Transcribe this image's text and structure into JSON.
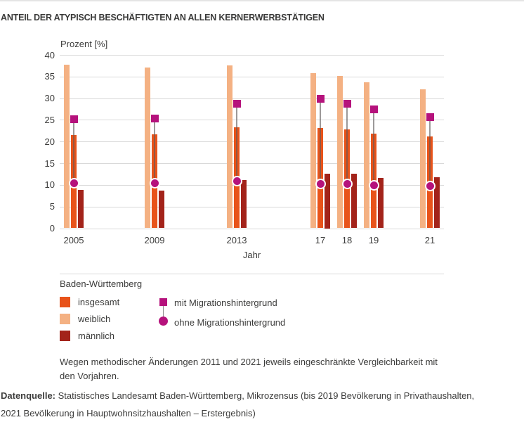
{
  "title": "ANTEIL DER ATYPISCH BESCHÄFTIGTEN AN ALLEN KERNERWERBSTÄTIGEN",
  "chart_data": {
    "type": "bar",
    "title": "Anteil der atypisch Beschäftigten an allen Kernerwerbstätigen",
    "ylabel": "Prozent [%]",
    "xlabel": "Jahr",
    "ylim": [
      0,
      40
    ],
    "yticks": [
      0,
      5,
      10,
      15,
      20,
      25,
      30,
      35,
      40
    ],
    "grid": true,
    "legend_position": "bottom",
    "categories": [
      "2005",
      "2009",
      "2013",
      "17",
      "18",
      "19",
      "21"
    ],
    "series": [
      {
        "name": "weiblich",
        "render": "bar",
        "color": "#f4b183",
        "values": [
          37.8,
          37.0,
          37.6,
          35.8,
          35.1,
          33.6,
          32.1
        ]
      },
      {
        "name": "insgesamt",
        "render": "bar",
        "color": "#e8531a",
        "values": [
          21.5,
          21.6,
          23.3,
          23.1,
          22.8,
          21.8,
          21.1
        ]
      },
      {
        "name": "männlich",
        "render": "bar",
        "color": "#a3231a",
        "values": [
          8.8,
          8.7,
          11.1,
          12.5,
          12.6,
          11.6,
          11.8
        ]
      },
      {
        "name": "mit Migrationshintergrund",
        "render": "square-marker",
        "color": "#b5127c",
        "values": [
          25.2,
          25.3,
          28.7,
          29.8,
          28.7,
          27.5,
          25.7
        ]
      },
      {
        "name": "ohne Migrationshintergrund",
        "render": "circle-marker",
        "color": "#b5127c",
        "values": [
          10.4,
          10.4,
          10.8,
          10.3,
          10.3,
          9.9,
          9.8
        ]
      }
    ]
  },
  "legend": {
    "region_label": "Baden-Württemberg",
    "items": [
      {
        "label": "insgesamt",
        "color": "#e8531a"
      },
      {
        "label": "weiblich",
        "color": "#f4b183"
      },
      {
        "label": "männlich",
        "color": "#a3231a"
      },
      {
        "label": "mit Migrationshintergrund",
        "color": "#b5127c"
      },
      {
        "label": "ohne Migrationshintergrund",
        "color": "#b5127c"
      }
    ]
  },
  "footnote": "Wegen methodischer Änderungen 2011 und 2021 jeweils eingeschränkte Vergleichbarkeit mit den Vorjahren.",
  "source": {
    "prefix": "Datenquelle:",
    "text": " Statistisches Landesamt Baden-Württemberg, Mikrozensus (bis 2019 Bevölkerung in Privathaushalten, 2021 Bevölkerung in Hauptwohnsitzhaushalten – Erstergebnis)"
  },
  "colors": {
    "text": "#3c3c3b",
    "gridline": "#d9d9d9",
    "insgesamt": "#e8531a",
    "weiblich": "#f4b183",
    "maennlich": "#a3231a",
    "migration_marker": "#b5127c"
  }
}
